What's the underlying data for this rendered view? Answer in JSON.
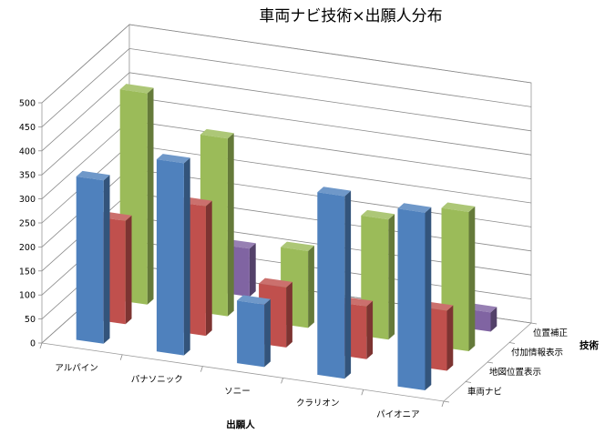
{
  "chart_data": {
    "type": "bar",
    "subtype": "3d-clustered-column",
    "title": "車両ナビ技術×出願人分布",
    "xlabel": "出願人",
    "zlabel": "技術",
    "categories": [
      "アルパイン",
      "パナソニック",
      "ソニー",
      "クラリオン",
      "パイオニア"
    ],
    "series": [
      {
        "name": "車両ナビ",
        "color": "#4F81BD",
        "values": [
          340,
          400,
          130,
          380,
          370
        ]
      },
      {
        "name": "地図位置表示",
        "color": "#C0504D",
        "values": [
          215,
          270,
          125,
          110,
          125
        ]
      },
      {
        "name": "付加情報表示",
        "color": "#9BBB59",
        "values": [
          440,
          370,
          160,
          250,
          290
        ]
      },
      {
        "name": "位置補正",
        "color": "#8064A2",
        "values": [
          0,
          100,
          0,
          0,
          40
        ]
      }
    ],
    "yticks": [
      "0",
      "50",
      "100",
      "150",
      "200",
      "250",
      "300",
      "350",
      "400",
      "450",
      "500"
    ],
    "ylim": [
      0,
      500
    ],
    "grid": true,
    "legend": "none"
  }
}
